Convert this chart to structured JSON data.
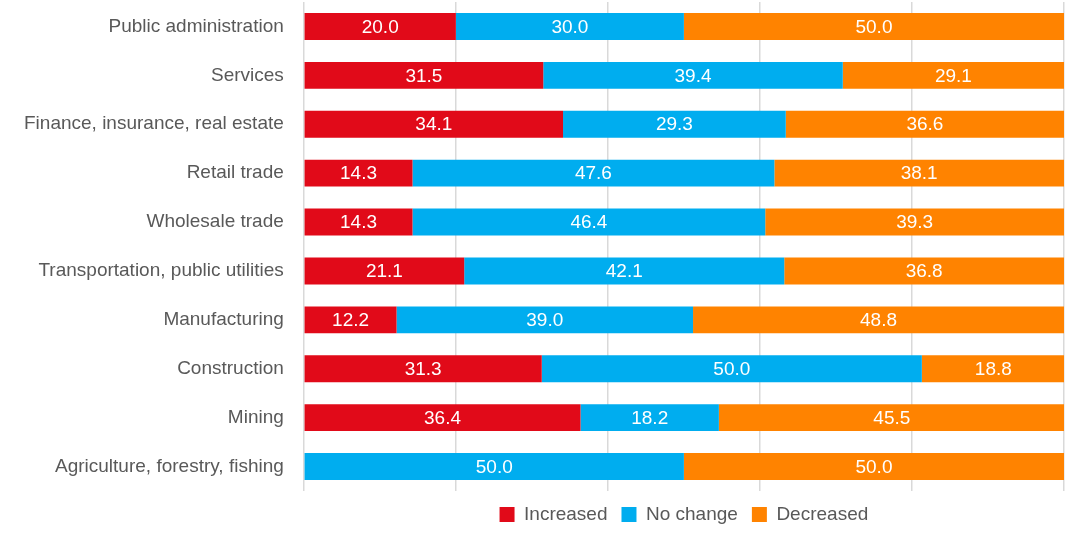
{
  "chart_data": {
    "type": "bar",
    "orientation": "horizontal",
    "stacked": true,
    "categories": [
      "Public administration",
      "Services",
      "Finance, insurance, real estate",
      "Retail trade",
      "Wholesale trade",
      "Transportation, public utilities",
      "Manufacturing",
      "Construction",
      "Mining",
      "Agriculture, forestry, fishing"
    ],
    "series": [
      {
        "name": "Increased",
        "color": "#e10a19",
        "values": [
          20.0,
          31.5,
          34.1,
          14.3,
          14.3,
          21.1,
          12.2,
          31.3,
          36.4,
          0
        ],
        "value_labels": [
          "20.0",
          "31.5",
          "34.1",
          "14.3",
          "14.3",
          "21.1",
          "12.2",
          "31.3",
          "36.4",
          null
        ]
      },
      {
        "name": "No change",
        "color": "#00adef",
        "values": [
          30.0,
          39.4,
          29.3,
          47.6,
          46.4,
          42.1,
          39.0,
          50.0,
          18.2,
          50.0
        ],
        "value_labels": [
          "30.0",
          "39.4",
          "29.3",
          "47.6",
          "46.4",
          "42.1",
          "39.0",
          "50.0",
          "18.2",
          "50.0"
        ]
      },
      {
        "name": "Decreased",
        "color": "#ff8300",
        "values": [
          50.0,
          29.1,
          36.6,
          38.1,
          39.3,
          36.8,
          48.8,
          18.8,
          45.5,
          50.0
        ],
        "value_labels": [
          "50.0",
          "29.1",
          "36.6",
          "38.1",
          "39.3",
          "36.8",
          "48.8",
          "18.8",
          "45.5",
          "50.0"
        ]
      }
    ],
    "xlim": [
      0,
      100
    ],
    "xticks": [
      {
        "value": 0,
        "label": null
      },
      {
        "value": 20,
        "label": null
      },
      {
        "value": 40,
        "label": null
      },
      {
        "value": 60,
        "label": null
      },
      {
        "value": 80,
        "label": null
      },
      {
        "value": 100,
        "label": null
      }
    ],
    "grid": "x",
    "legend": "bottom",
    "tick_labels": "y"
  }
}
